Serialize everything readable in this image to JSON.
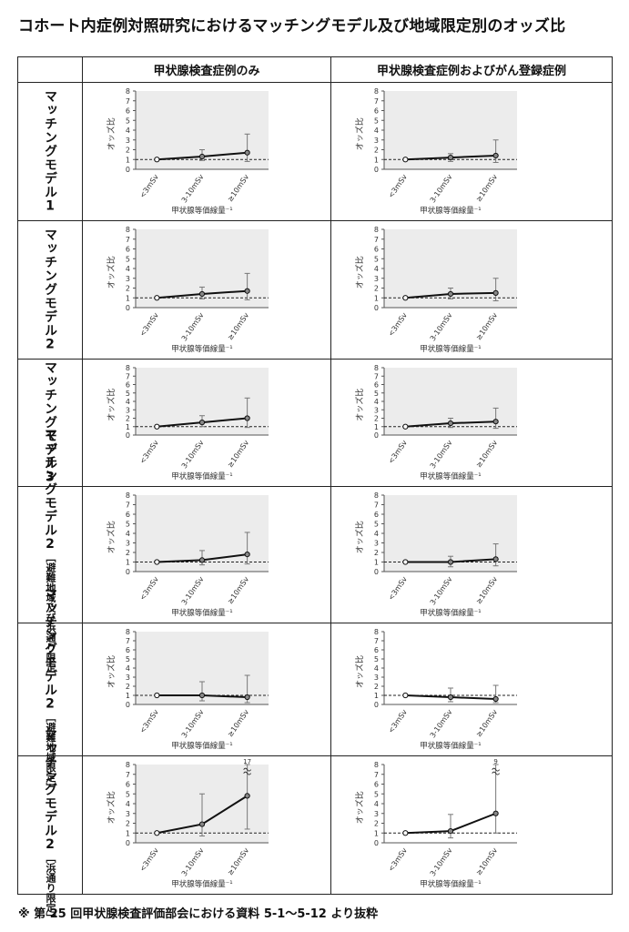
{
  "page": {
    "title": "コホート内症例対照研究におけるマッチングモデル及び地域限定別のオッズ比",
    "footnote": "※ 第 25 回甲状腺検査評価部会における資料 5-1～5-12 より抜粋"
  },
  "table": {
    "columns": [
      "甲状腺検査症例のみ",
      "甲状腺検査症例およびがん登録症例"
    ],
    "rows": [
      {
        "main": "マッチングモデル1",
        "sub": ""
      },
      {
        "main": "マッチングモデル2",
        "sub": ""
      },
      {
        "main": "マッチングモデル3",
        "sub": ""
      },
      {
        "main": "マッチングモデル2",
        "sub": "［避難地域及び浜通り限定］"
      },
      {
        "main": "マッチングモデル2",
        "sub": "［避難地域限定］"
      },
      {
        "main": "マッチングモデル2",
        "sub": "［浜通り限定］"
      }
    ]
  },
  "chart_data": [
    {
      "type": "line",
      "panel": "row1-col1",
      "categories": [
        "<3mSv",
        "3-10mSv",
        "≥10mSv"
      ],
      "values": [
        1.0,
        1.3,
        1.7
      ],
      "ci_low": [
        1.0,
        0.9,
        0.8
      ],
      "ci_high": [
        1.0,
        2.0,
        3.6
      ],
      "reference_line": 1,
      "ylabel": "オッズ比",
      "xlabel": "甲状腺等価線量",
      "ylim": [
        0,
        8
      ],
      "yticks": [
        0,
        1,
        2,
        3,
        4,
        5,
        6,
        7,
        8
      ],
      "background": "#ececec"
    },
    {
      "type": "line",
      "panel": "row1-col2",
      "categories": [
        "<3mSv",
        "3-10mSv",
        "≥10mSv"
      ],
      "values": [
        1.0,
        1.2,
        1.4
      ],
      "ci_low": [
        1.0,
        0.8,
        0.7
      ],
      "ci_high": [
        1.0,
        1.6,
        3.0
      ],
      "reference_line": 1,
      "ylabel": "オッズ比",
      "xlabel": "甲状腺等価線量",
      "ylim": [
        0,
        8
      ],
      "yticks": [
        0,
        1,
        2,
        3,
        4,
        5,
        6,
        7,
        8
      ],
      "background": "#ececec"
    },
    {
      "type": "line",
      "panel": "row2-col1",
      "categories": [
        "<3mSv",
        "3-10mSv",
        "≥10mSv"
      ],
      "values": [
        1.0,
        1.4,
        1.7
      ],
      "ci_low": [
        1.0,
        0.9,
        0.8
      ],
      "ci_high": [
        1.0,
        2.1,
        3.5
      ],
      "reference_line": 1,
      "ylabel": "オッズ比",
      "xlabel": "甲状腺等価線量",
      "ylim": [
        0,
        8
      ],
      "yticks": [
        0,
        1,
        2,
        3,
        4,
        5,
        6,
        7,
        8
      ],
      "background": "#ececec"
    },
    {
      "type": "line",
      "panel": "row2-col2",
      "categories": [
        "<3mSv",
        "3-10mSv",
        "≥10mSv"
      ],
      "values": [
        1.0,
        1.4,
        1.5
      ],
      "ci_low": [
        1.0,
        0.9,
        0.7
      ],
      "ci_high": [
        1.0,
        2.0,
        3.0
      ],
      "reference_line": 1,
      "ylabel": "オッズ比",
      "xlabel": "甲状腺等価線量",
      "ylim": [
        0,
        8
      ],
      "yticks": [
        0,
        1,
        2,
        3,
        4,
        5,
        6,
        7,
        8
      ],
      "background": "#ececec"
    },
    {
      "type": "line",
      "panel": "row3-col1",
      "categories": [
        "<3mSv",
        "3-10mSv",
        "≥10mSv"
      ],
      "values": [
        1.0,
        1.5,
        2.0
      ],
      "ci_low": [
        1.0,
        1.0,
        0.9
      ],
      "ci_high": [
        1.0,
        2.3,
        4.4
      ],
      "reference_line": 1,
      "ylabel": "オッズ比",
      "xlabel": "甲状腺等価線量",
      "ylim": [
        0,
        8
      ],
      "yticks": [
        0,
        1,
        2,
        3,
        4,
        5,
        6,
        7,
        8
      ],
      "background": "#ececec"
    },
    {
      "type": "line",
      "panel": "row3-col2",
      "categories": [
        "<3mSv",
        "3-10mSv",
        "≥10mSv"
      ],
      "values": [
        1.0,
        1.4,
        1.6
      ],
      "ci_low": [
        1.0,
        0.9,
        0.8
      ],
      "ci_high": [
        1.0,
        2.0,
        3.2
      ],
      "reference_line": 1,
      "ylabel": "オッズ比",
      "xlabel": "甲状腺等価線量",
      "ylim": [
        0,
        8
      ],
      "yticks": [
        0,
        1,
        2,
        3,
        4,
        5,
        6,
        7,
        8
      ],
      "background": "#ececec"
    },
    {
      "type": "line",
      "panel": "row4-col1",
      "categories": [
        "<3mSv",
        "3-10mSv",
        "≥10mSv"
      ],
      "values": [
        1.0,
        1.2,
        1.8
      ],
      "ci_low": [
        1.0,
        0.7,
        0.8
      ],
      "ci_high": [
        1.0,
        2.2,
        4.1
      ],
      "reference_line": 1,
      "ylabel": "オッズ比",
      "xlabel": "甲状腺等価線量",
      "ylim": [
        0,
        8
      ],
      "yticks": [
        0,
        1,
        2,
        3,
        4,
        5,
        6,
        7,
        8
      ],
      "background": "#ececec"
    },
    {
      "type": "line",
      "panel": "row4-col2",
      "categories": [
        "<3mSv",
        "3-10mSv",
        "≥10mSv"
      ],
      "values": [
        1.0,
        1.0,
        1.3
      ],
      "ci_low": [
        1.0,
        0.5,
        0.6
      ],
      "ci_high": [
        1.0,
        1.6,
        2.9
      ],
      "reference_line": 1,
      "ylabel": "オッズ比",
      "xlabel": "甲状腺等価線量",
      "ylim": [
        0,
        8
      ],
      "yticks": [
        0,
        1,
        2,
        3,
        4,
        5,
        6,
        7,
        8
      ],
      "background": "#ececec"
    },
    {
      "type": "line",
      "panel": "row5-col1",
      "categories": [
        "<3mSv",
        "3-10mSv",
        "≥10mSv"
      ],
      "values": [
        1.0,
        1.0,
        0.8
      ],
      "ci_low": [
        1.0,
        0.4,
        0.2
      ],
      "ci_high": [
        1.0,
        2.5,
        3.2
      ],
      "reference_line": 1,
      "ylabel": "オッズ比",
      "xlabel": "甲状腺等価線量",
      "ylim": [
        0,
        8
      ],
      "yticks": [
        0,
        1,
        2,
        3,
        4,
        5,
        6,
        7,
        8
      ],
      "background": "#ececec"
    },
    {
      "type": "line",
      "panel": "row5-col2",
      "categories": [
        "<3mSv",
        "3-10mSv",
        "≥10mSv"
      ],
      "values": [
        1.0,
        0.8,
        0.6
      ],
      "ci_low": [
        1.0,
        0.3,
        0.2
      ],
      "ci_high": [
        1.0,
        1.8,
        2.1
      ],
      "reference_line": 1,
      "ylabel": "オッズ比",
      "xlabel": "甲状腺等価線量",
      "ylim": [
        0,
        8
      ],
      "yticks": [
        0,
        1,
        2,
        3,
        4,
        5,
        6,
        7,
        8
      ],
      "background": "#ffffff"
    },
    {
      "type": "line",
      "panel": "row6-col1",
      "categories": [
        "<3mSv",
        "3-10mSv",
        "≥10mSv"
      ],
      "values": [
        1.0,
        1.9,
        4.8
      ],
      "ci_low": [
        1.0,
        0.7,
        1.4
      ],
      "ci_high": [
        1.0,
        5.0,
        8.0
      ],
      "ci_high_label": "17",
      "reference_line": 1,
      "ylabel": "オッズ比",
      "xlabel": "甲状腺等価線量",
      "ylim": [
        0,
        8
      ],
      "yticks": [
        0,
        1,
        2,
        3,
        4,
        5,
        6,
        7,
        8
      ],
      "background": "#ececec"
    },
    {
      "type": "line",
      "panel": "row6-col2",
      "categories": [
        "<3mSv",
        "3-10mSv",
        "≥10mSv"
      ],
      "values": [
        1.0,
        1.2,
        3.0
      ],
      "ci_low": [
        1.0,
        0.5,
        1.0
      ],
      "ci_high": [
        1.0,
        2.9,
        8.0
      ],
      "ci_high_label": "9",
      "reference_line": 1,
      "ylabel": "オッズ比",
      "xlabel": "甲状腺等価線量",
      "ylim": [
        0,
        8
      ],
      "yticks": [
        0,
        1,
        2,
        3,
        4,
        5,
        6,
        7,
        8
      ],
      "background": "#ffffff"
    }
  ]
}
